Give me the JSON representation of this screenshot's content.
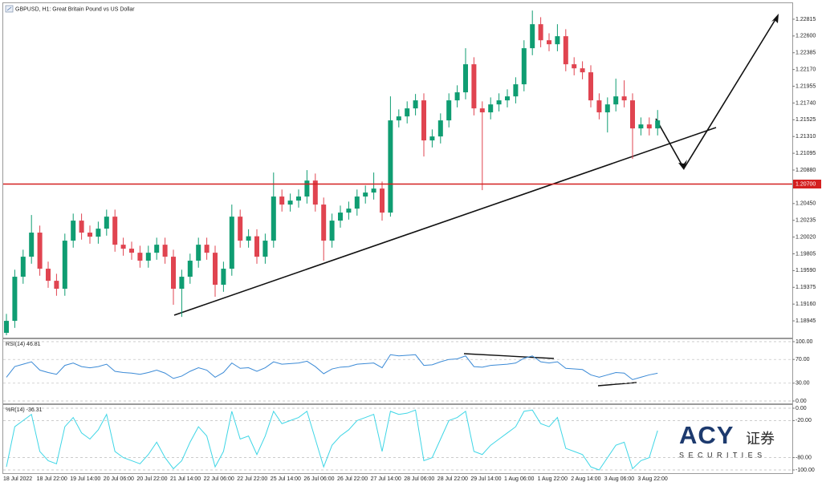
{
  "chart_data": [
    {
      "type": "candlestick",
      "title": "GBPUSD, H1:  Great Britain Pound vs US Dollar",
      "categories": [
        "18 Jul 2022",
        null,
        null,
        null,
        "18 Jul 22:00",
        null,
        null,
        null,
        "19 Jul 14:00",
        null,
        null,
        null,
        "20 Jul 06:00",
        null,
        null,
        null,
        "20 Jul 22:00",
        null,
        null,
        null,
        "21 Jul 14:00",
        null,
        null,
        null,
        "22 Jul 06:00",
        null,
        null,
        null,
        "22 Jul 22:00",
        null,
        null,
        null,
        "25 Jul 14:00",
        null,
        null,
        null,
        "26 Jul 06:00",
        null,
        null,
        null,
        "26 Jul 22:00",
        null,
        null,
        null,
        "27 Jul 14:00",
        null,
        null,
        null,
        "28 Jul 06:00",
        null,
        null,
        null,
        "28 Jul 22:00",
        null,
        null,
        null,
        "29 Jul 14:00",
        null,
        null,
        null,
        "1 Aug 06:00",
        null,
        null,
        null,
        "1 Aug 22:00",
        null,
        null,
        null,
        "2 Aug 14:00",
        null,
        null,
        null,
        "3 Aug 06:00",
        null,
        null,
        null,
        "3 Aug 22:00",
        null,
        null
      ],
      "open": [
        1.18791,
        1.18945,
        1.19511,
        1.19768,
        1.20077,
        1.19614,
        1.19459,
        1.19357,
        1.19974,
        1.20231,
        1.20077,
        1.20025,
        1.20128,
        1.20282,
        1.19922,
        1.19871,
        1.19819,
        1.19717,
        1.19819,
        1.19922,
        1.19768,
        1.19357,
        1.19511,
        1.19717,
        1.19922,
        1.19819,
        1.19408,
        1.19614,
        1.20282,
        1.19974,
        1.2003,
        1.19768,
        1.19974,
        1.2054,
        1.20437,
        1.20488,
        1.2054,
        1.20745,
        1.20437,
        1.19974,
        1.20231,
        1.20334,
        1.20385,
        1.2054,
        1.20591,
        1.20642,
        1.20334,
        1.21517,
        1.21568,
        1.21671,
        1.21774,
        1.2126,
        1.21311,
        1.21517,
        1.21774,
        1.21877,
        1.22237,
        1.21671,
        1.2162,
        1.21722,
        1.21774,
        1.21825,
        1.2198,
        1.22443,
        1.22751,
        1.22545,
        1.22494,
        1.22597,
        1.22237,
        1.22185,
        1.22134,
        1.21774,
        1.2162,
        1.21722,
        1.21825,
        1.21774,
        1.21414,
        1.21465,
        1.21414
      ],
      "high": [
        1.19035,
        1.19601,
        1.19858,
        1.20303,
        1.20167,
        1.19704,
        1.19549,
        1.20064,
        1.20321,
        1.20321,
        1.20167,
        1.20218,
        1.20372,
        1.20372,
        1.20012,
        1.19961,
        1.19909,
        1.19909,
        1.20012,
        1.20012,
        1.19858,
        1.19601,
        1.19807,
        1.20012,
        1.20012,
        1.19909,
        1.19704,
        1.20437,
        1.20372,
        1.2012,
        1.2012,
        1.20064,
        1.20848,
        1.2063,
        1.20578,
        1.2063,
        1.20879,
        1.20835,
        1.20527,
        1.20321,
        1.20424,
        1.20475,
        1.2063,
        1.20681,
        1.20848,
        1.20732,
        1.21825,
        1.21658,
        1.21761,
        1.21856,
        1.21864,
        1.21401,
        1.21607,
        1.21864,
        1.21967,
        1.22443,
        1.22327,
        1.21761,
        1.21812,
        1.21864,
        1.21915,
        1.2207,
        1.22545,
        1.22926,
        1.22841,
        1.22635,
        1.22751,
        1.22687,
        1.22327,
        1.22275,
        1.22224,
        1.21864,
        1.21812,
        1.22052,
        1.22031,
        1.21864,
        1.21555,
        1.21555,
        1.2165
      ],
      "low": [
        1.1876,
        1.18855,
        1.19421,
        1.19678,
        1.19524,
        1.19369,
        1.19267,
        1.19267,
        1.19884,
        1.19987,
        1.19935,
        1.19935,
        1.20038,
        1.19832,
        1.19781,
        1.19729,
        1.19627,
        1.19627,
        1.19729,
        1.19678,
        1.19151,
        1.18996,
        1.19421,
        1.19627,
        1.19729,
        1.19254,
        1.19318,
        1.19524,
        1.19884,
        1.19884,
        1.19678,
        1.19678,
        1.19884,
        1.20347,
        1.20347,
        1.20398,
        1.2045,
        1.20347,
        1.19717,
        1.19884,
        1.20141,
        1.20244,
        1.20295,
        1.2045,
        1.20501,
        1.20231,
        1.20282,
        1.21427,
        1.21478,
        1.21581,
        1.21054,
        1.2117,
        1.21221,
        1.21427,
        1.21684,
        1.21787,
        1.21581,
        1.20622,
        1.2153,
        1.21632,
        1.21684,
        1.21735,
        1.2189,
        1.22353,
        1.22455,
        1.22404,
        1.22404,
        1.22147,
        1.22095,
        1.22044,
        1.21684,
        1.2153,
        1.21362,
        1.21632,
        1.21684,
        1.21023,
        1.21324,
        1.21324,
        1.21324
      ],
      "close": [
        1.18945,
        1.19511,
        1.19768,
        1.20077,
        1.19614,
        1.19459,
        1.19357,
        1.19974,
        1.20231,
        1.20077,
        1.20025,
        1.20128,
        1.20282,
        1.19922,
        1.19871,
        1.19819,
        1.19717,
        1.19819,
        1.19922,
        1.19768,
        1.19357,
        1.19511,
        1.19717,
        1.19922,
        1.19819,
        1.19408,
        1.19614,
        1.20282,
        1.19974,
        1.2003,
        1.19768,
        1.19974,
        1.2054,
        1.20437,
        1.20488,
        1.2054,
        1.20745,
        1.20437,
        1.19974,
        1.20231,
        1.20334,
        1.20385,
        1.2054,
        1.20591,
        1.20642,
        1.20334,
        1.21517,
        1.21568,
        1.21671,
        1.21774,
        1.2126,
        1.21311,
        1.21517,
        1.21774,
        1.21877,
        1.22237,
        1.21671,
        1.2162,
        1.21722,
        1.21774,
        1.21825,
        1.2198,
        1.22443,
        1.22751,
        1.22545,
        1.22494,
        1.22597,
        1.22237,
        1.22185,
        1.22134,
        1.21774,
        1.2162,
        1.21722,
        1.21825,
        1.21774,
        1.21414,
        1.21465,
        1.21414,
        1.21517
      ],
      "up_color": "#0f9d72",
      "down_color": "#e04450",
      "ylim": [
        1.1874,
        1.2301
      ],
      "yticks": [
        1.18945,
        {
          "value": 1.1916,
          "label": "1.19160"
        },
        1.19375,
        {
          "value": 1.1959,
          "label": "1.19590"
        },
        1.19805,
        {
          "value": 1.2002,
          "label": "1.20020"
        },
        1.20235,
        {
          "value": 1.2045,
          "label": "1.20450"
        },
        {
          "value": 1.2088,
          "label": "1.20880"
        },
        1.21095,
        {
          "value": 1.2131,
          "label": "1.21310"
        },
        1.21525,
        {
          "value": 1.2174,
          "label": "1.21740"
        },
        1.21955,
        {
          "value": 1.2217,
          "label": "1.22170"
        },
        1.22385,
        {
          "value": 1.226,
          "label": "1.22600"
        },
        1.22815
      ],
      "level": {
        "value": 1.207,
        "label": "1.20700",
        "color": "#d42020"
      }
    },
    {
      "type": "line",
      "title": "RSI(14) 46.81",
      "color": "#3b8ad6",
      "grid": true,
      "values": [
        40,
        58,
        62,
        66,
        52,
        48,
        45,
        60,
        64,
        58,
        56,
        58,
        62,
        50,
        48,
        47,
        45,
        48,
        52,
        47,
        38,
        42,
        50,
        56,
        52,
        40,
        48,
        64,
        55,
        56,
        50,
        56,
        66,
        62,
        63,
        64,
        67,
        58,
        46,
        54,
        57,
        58,
        62,
        63,
        64,
        56,
        78,
        76,
        77,
        78,
        60,
        61,
        66,
        70,
        71,
        76,
        58,
        57,
        60,
        61,
        62,
        64,
        72,
        76,
        66,
        64,
        66,
        55,
        54,
        53,
        44,
        40,
        44,
        48,
        47,
        36,
        40,
        44,
        46.81
      ],
      "ylim": [
        0,
        100
      ],
      "yticks": [
        {
          "value": 100,
          "label": "100.00"
        },
        {
          "value": 70,
          "label": "70.00"
        },
        {
          "value": 30,
          "label": "30.00"
        },
        {
          "value": 0,
          "label": "0.00"
        }
      ]
    },
    {
      "type": "line",
      "title": "%R(14) -36.31",
      "color": "#3fd6e6",
      "grid": true,
      "values": [
        -95,
        -30,
        -20,
        -10,
        -70,
        -85,
        -90,
        -30,
        -15,
        -40,
        -50,
        -35,
        -10,
        -70,
        -80,
        -85,
        -90,
        -75,
        -55,
        -80,
        -98,
        -85,
        -55,
        -30,
        -45,
        -95,
        -70,
        -5,
        -50,
        -45,
        -75,
        -45,
        -5,
        -25,
        -20,
        -15,
        -5,
        -50,
        -95,
        -60,
        -45,
        -35,
        -20,
        -15,
        -10,
        -70,
        -5,
        -10,
        -8,
        -3,
        -85,
        -80,
        -50,
        -20,
        -15,
        -5,
        -70,
        -75,
        -60,
        -50,
        -40,
        -30,
        -5,
        -3,
        -25,
        -30,
        -15,
        -65,
        -70,
        -75,
        -95,
        -100,
        -80,
        -60,
        -55,
        -98,
        -85,
        -80,
        -36.31
      ],
      "ylim": [
        -100,
        0
      ],
      "yticks": [
        {
          "value": 0,
          "label": "0.00"
        },
        {
          "value": -20,
          "label": "-20.00"
        },
        {
          "value": -80,
          "label": "-80.00"
        },
        {
          "value": -100,
          "label": "-100.00"
        }
      ]
    }
  ],
  "watermark": {
    "brand": "ACY",
    "suffix": "证券",
    "tagline": "S E C U R I T I E S"
  }
}
